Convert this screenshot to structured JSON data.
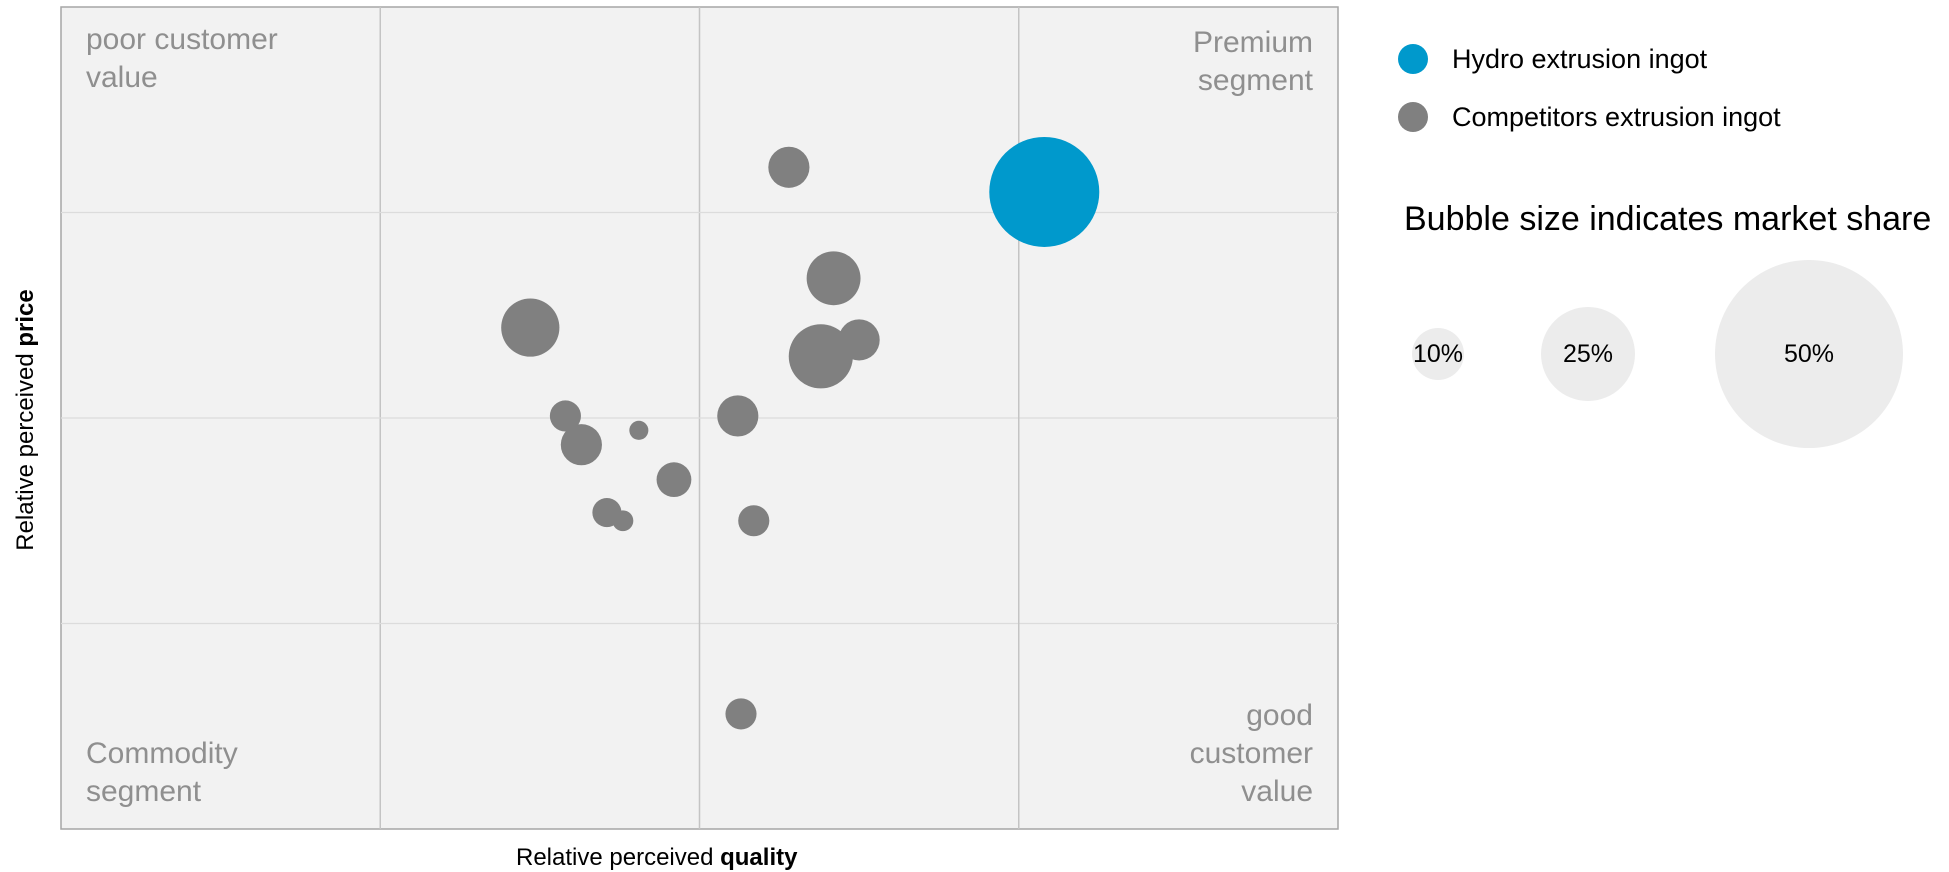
{
  "chart_data": {
    "type": "bubble",
    "xlabel": {
      "prefix": "Relative perceived ",
      "bold": "quality"
    },
    "ylabel": {
      "prefix": "Relative perceived ",
      "bold": "price"
    },
    "xlim": [
      0,
      4
    ],
    "ylim": [
      0,
      4
    ],
    "grid": true,
    "quadrant_labels": {
      "top_left": [
        "poor customer",
        "value"
      ],
      "top_right": [
        "Premium",
        "segment"
      ],
      "bottom_left": [
        "Commodity",
        "segment"
      ],
      "bottom_right": [
        "good",
        "customer",
        "value"
      ]
    },
    "series": [
      {
        "name": "Hydro extrusion ingot",
        "color": "#0099cc",
        "points": [
          {
            "x": 3.08,
            "y": 3.1,
            "share": 0.5
          }
        ]
      },
      {
        "name": "Competitors extrusion ingot",
        "color": "#808080",
        "points": [
          {
            "x": 2.28,
            "y": 3.22,
            "share": 0.07
          },
          {
            "x": 2.42,
            "y": 2.68,
            "share": 0.12
          },
          {
            "x": 2.5,
            "y": 2.38,
            "share": 0.07
          },
          {
            "x": 2.38,
            "y": 2.3,
            "share": 0.17
          },
          {
            "x": 1.47,
            "y": 2.44,
            "share": 0.14
          },
          {
            "x": 1.58,
            "y": 2.01,
            "share": 0.04
          },
          {
            "x": 1.63,
            "y": 1.87,
            "share": 0.07
          },
          {
            "x": 1.81,
            "y": 1.94,
            "share": 0.015
          },
          {
            "x": 2.12,
            "y": 2.01,
            "share": 0.07
          },
          {
            "x": 1.92,
            "y": 1.7,
            "share": 0.05
          },
          {
            "x": 1.71,
            "y": 1.54,
            "share": 0.035
          },
          {
            "x": 1.76,
            "y": 1.5,
            "share": 0.018
          },
          {
            "x": 2.17,
            "y": 1.5,
            "share": 0.04
          },
          {
            "x": 2.13,
            "y": 0.56,
            "share": 0.04
          }
        ]
      }
    ],
    "size_legend": {
      "title": "Bubble size indicates market share",
      "items": [
        {
          "label": "10%",
          "share": 0.1
        },
        {
          "label": "25%",
          "share": 0.25
        },
        {
          "label": "50%",
          "share": 0.5
        }
      ]
    }
  }
}
